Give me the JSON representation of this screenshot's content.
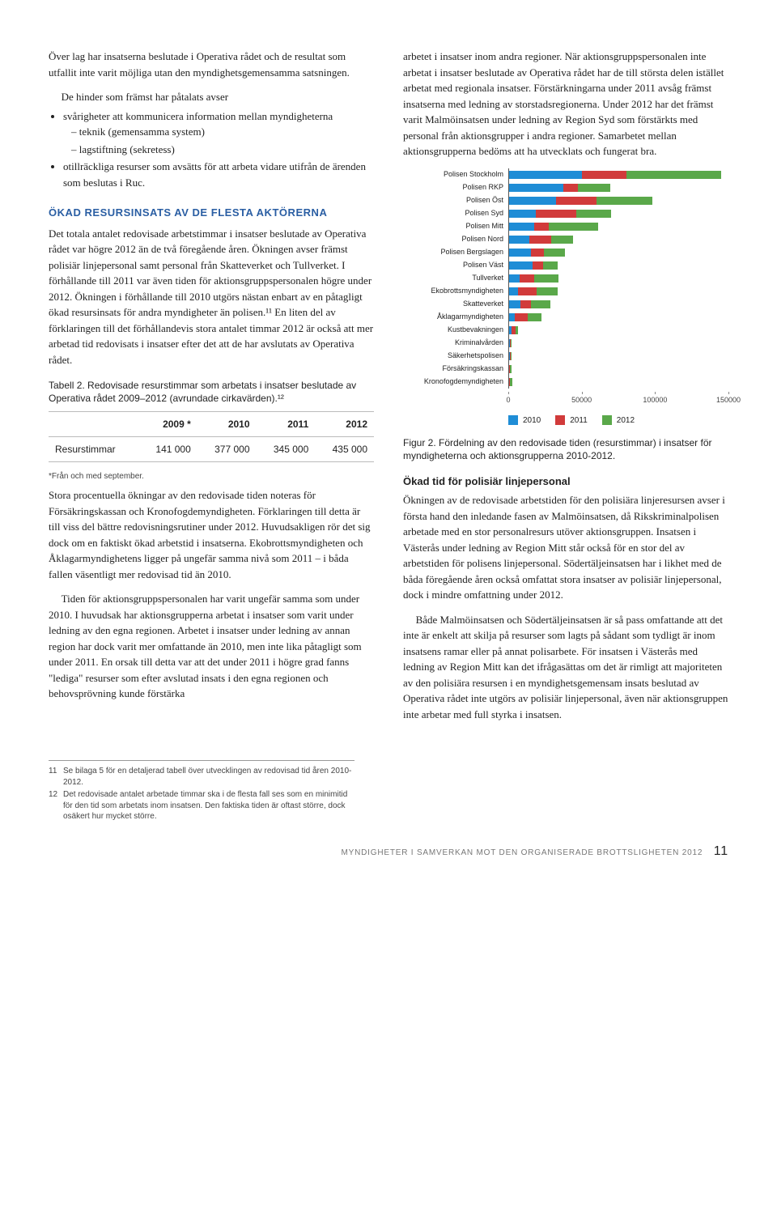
{
  "colors": {
    "c2010": "#1f8dd6",
    "c2011": "#d13b3b",
    "c2012": "#5aa84a",
    "grid": "#888"
  },
  "left": {
    "intro": "Över lag har insatserna beslutade i Operativa rådet och de resultat som utfallit inte varit möjliga utan den myndighets­gemensamma satsningen.",
    "bullet_lead": "De hinder som främst har påtalats avser",
    "bullets": [
      "svårigheter att kommunicera information mellan myndigheterna",
      "otillräckliga resurser som avsätts för att arbeta vidare utifrån de ärenden som beslutas i Ruc."
    ],
    "sub_bullets": [
      "teknik (gemensamma system)",
      "lagstiftning (sekretess)"
    ],
    "h1": "ÖKAD RESURSINSATS AV DE FLESTA AKTÖRERNA",
    "p1": "Det totala antalet redovisade arbetstimmar i insatser beslutade av Operativa rådet var högre 2012 än de två föregående åren. Ökningen avser främst polisiär linjepersonal samt personal från Skatteverket och Tullverket. I förhållande till 2011 var även tiden för aktionsgruppspersonalen högre under 2012. Ökningen i förhållande till 2010 utgörs nästan enbart av en påtagligt ökad resursinsats för andra myndigheter än polisen.¹¹ En liten del av förklaringen till det förhållandevis stora antalet timmar 2012 är också att mer arbetad tid redovisats i insatser efter det att de har avslutats av Operativa rådet.",
    "table_caption": "Tabell 2. Redovisade resurstimmar som arbetats i insatser beslutade av Operativa rådet 2009–2012 (avrundade cirkavärden).¹²",
    "table": {
      "headers": [
        "",
        "2009 *",
        "2010",
        "2011",
        "2012"
      ],
      "row_label": "Resurstimmar",
      "row": [
        "141 000",
        "377 000",
        "345 000",
        "435 000"
      ]
    },
    "table_note": "*Från och med september.",
    "p2": "Stora procentuella ökningar av den redovisade tiden noteras för Försäkringskassan och Kronofogdemyndigheten. Förklaringen till detta är till viss del bättre redovisningsrutiner under 2012. Huvudsakligen rör det sig dock om en faktiskt ökad arbetstid i insatserna. Ekobrottsmyndigheten och Åklagarmyndighetens ligger på ungefär samma nivå som 2011 – i båda fallen väsentligt mer redovisad tid än 2010.",
    "p3": "Tiden för aktionsgruppspersonalen har varit ungefär samma som under 2010. I huvudsak har aktionsgrupperna arbetat i insatser som varit under ledning av den egna regionen. Arbetet i insatser under ledning av annan region har dock varit mer omfattande än 2010, men inte lika påtagligt som under 2011. En orsak till detta var att det under 2011 i högre grad fanns \"lediga\" resurser som efter avslutad insats i den egna regionen och behovsprövning kunde förstärka"
  },
  "right": {
    "p0": "arbetet i insatser inom andra regioner. När aktionsgrupps­personalen inte arbetat i insatser beslutade av Operativa rådet har de till största delen istället arbetat med regionala insatser. Förstärkningarna under 2011 avsåg främst insatserna med ledning av storstadsregionerna. Under 2012 har det främst varit Malmöinsatsen under ledning av Region Syd som förstärkts med personal från aktionsgrupper i andra regioner. Samarbetet mellan aktionsgrupperna bedöms att ha utvecklats och fungerat bra.",
    "chart": {
      "xmax": 150000,
      "ticks": [
        0,
        50000,
        100000,
        150000
      ],
      "categories": [
        {
          "label": "Polisen Stockholm",
          "v": [
            50000,
            30000,
            65000
          ]
        },
        {
          "label": "Polisen RKP",
          "v": [
            37000,
            10000,
            22000
          ]
        },
        {
          "label": "Polisen Öst",
          "v": [
            32000,
            28000,
            38000
          ]
        },
        {
          "label": "Polisen Syd",
          "v": [
            18000,
            28000,
            24000
          ]
        },
        {
          "label": "Polisen Mitt",
          "v": [
            17000,
            10000,
            34000
          ]
        },
        {
          "label": "Polisen Nord",
          "v": [
            14000,
            15000,
            15000
          ]
        },
        {
          "label": "Polisen Bergslagen",
          "v": [
            15000,
            9000,
            14000
          ]
        },
        {
          "label": "Polisen Väst",
          "v": [
            16000,
            7000,
            10000
          ]
        },
        {
          "label": "Tullverket",
          "v": [
            7000,
            10000,
            17000
          ]
        },
        {
          "label": "Ekobrottsmyndigheten",
          "v": [
            6000,
            13000,
            14000
          ]
        },
        {
          "label": "Skatteverket",
          "v": [
            8000,
            7000,
            13000
          ]
        },
        {
          "label": "Åklagarmyndigheten",
          "v": [
            4000,
            9000,
            9000
          ]
        },
        {
          "label": "Kustbevakningen",
          "v": [
            1500,
            3000,
            1500
          ]
        },
        {
          "label": "Kriminalvården",
          "v": [
            500,
            500,
            500
          ]
        },
        {
          "label": "Säkerhetspolisen",
          "v": [
            300,
            600,
            300
          ]
        },
        {
          "label": "Försäkringskassan",
          "v": [
            200,
            300,
            1000
          ]
        },
        {
          "label": "Kronofogdemyndigheten",
          "v": [
            200,
            300,
            1500
          ]
        }
      ],
      "legend": [
        "2010",
        "2011",
        "2012"
      ]
    },
    "fig_caption": "Figur 2. Fördelning av den redovisade tiden (resurstimmar) i insatser för myndigheterna och aktionsgrupperna 2010-2012.",
    "h2": "Ökad tid för polisiär linjepersonal",
    "p1": "Ökningen av de redovisade arbetstiden för den polisiära linjeresursen avser i första hand den inledande fasen av Malmö­insatsen, då Rikskriminalpolisen arbetade med en stor personal­resurs utöver aktionsgruppen. Insatsen i Västerås under ledning av Region Mitt står också för en stor del av arbetstiden för polisens linjepersonal. Södertäljeinsatsen har i likhet med de båda föregående åren också omfattat stora insatser av polisiär linjepersonal, dock i mindre omfattning under 2012.",
    "p2": "Både Malmöinsatsen och Södertäljeinsatsen är så pass omfattande att det inte är enkelt att skilja på resurser som lagts på sådant som tydligt är inom insatsens ramar eller på annat polisarbete. För insatsen i Västerås med ledning av Region Mitt kan det ifrågasättas om det är rimligt att majoriteten av den polisiära resursen i en myndighetsgemensam insats beslutad av Operativa rådet inte utgörs av polisiär linjepersonal, även när aktionsgruppen inte arbetar med full styrka i insatsen."
  },
  "footnotes": [
    {
      "n": "11",
      "text": "Se bilaga 5 för en detaljerad tabell över utvecklingen av redovisad tid åren 2010-2012."
    },
    {
      "n": "12",
      "text": "Det redovisade antalet arbetade timmar ska i de flesta fall ses som en minimitid för den tid som arbetats inom insatsen. Den faktiska tiden är oftast större, dock osäkert hur mycket större."
    }
  ],
  "footer": {
    "line": "MYNDIGHETER I SAMVERKAN MOT DEN ORGANISERADE BROTTSLIGHETEN 2012",
    "page": "11"
  }
}
